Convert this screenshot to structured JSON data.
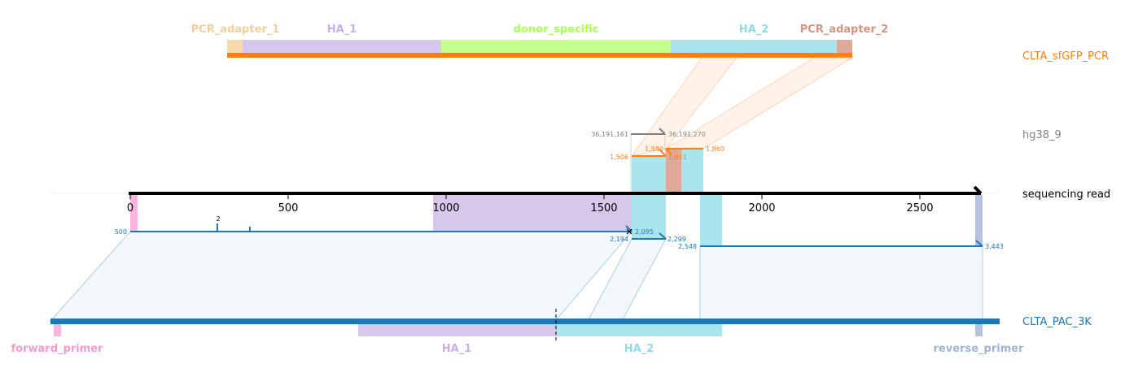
{
  "references": {
    "donor": {
      "name": "CLTA_sfGFP_PCR",
      "color": "#ff7f0e"
    },
    "genome": {
      "name": "hg38_9",
      "color": "#808080"
    },
    "read": {
      "name": "sequencing read",
      "color": "#000000"
    },
    "target": {
      "name": "CLTA_PAC_3K",
      "color": "#1f77b4"
    }
  },
  "donor_features": [
    {
      "label": "PCR_adapter_1",
      "color": "#f8d8ad"
    },
    {
      "label": "HA_1",
      "color": "#d7c8eb"
    },
    {
      "label": "donor_specific",
      "color": "#c5ff8c"
    },
    {
      "label": "HA_2",
      "color": "#aae5ee"
    },
    {
      "label": "PCR_adapter_2",
      "color": "#e0a898"
    }
  ],
  "donor_label_colors": [
    "#f5cf97",
    "#c7b0e6",
    "#a8ff55",
    "#8fdbe8",
    "#d8927f"
  ],
  "target_features": [
    {
      "label": "forward_primer",
      "color": "#f9b5dc",
      "label_color": "#f59ad0"
    },
    {
      "label": "HA_1",
      "color": "#d7c8eb",
      "label_color": "#c7b0e6"
    },
    {
      "label": "HA_2",
      "color": "#aae5ee",
      "label_color": "#8fdbe8"
    },
    {
      "label": "reverse_primer",
      "color": "#b5c2de",
      "label_color": "#a4b3d6"
    }
  ],
  "read_axis": {
    "ticks": [
      "0",
      "500",
      "1000",
      "1500",
      "2000",
      "2500"
    ]
  },
  "coordinates": {
    "genome_start": "36,191,161",
    "genome_end": "36,191,270",
    "donor_a_start": "1,506",
    "donor_a_end": "1,980",
    "donor_b_start": "1,611",
    "donor_b_end": "1,860",
    "target_a_start": "500",
    "target_a_end": "2,095",
    "target_b_start": "2,194",
    "target_b_end": "2,299",
    "target_c_start": "2,548",
    "target_c_end": "3,443",
    "indel": "2"
  }
}
